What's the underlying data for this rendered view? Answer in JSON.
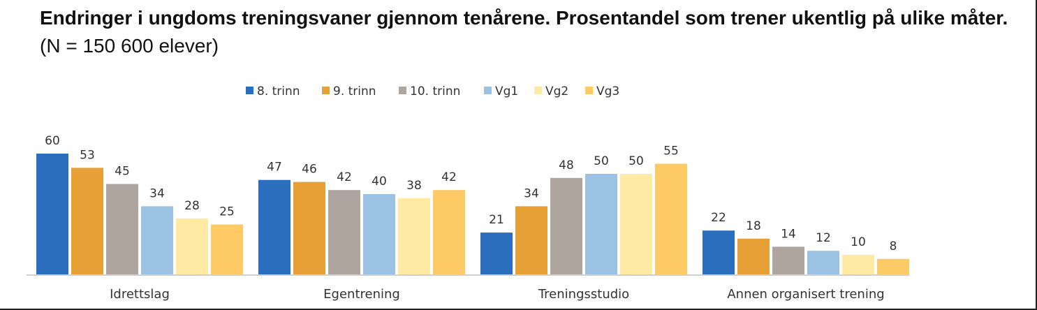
{
  "title": {
    "bold": "Endringer i ungdoms treningsvaner gjennom tenårene. Prosentandel som trener ukentlig på ulike måter.",
    "normal": "(N = 150 600 elever)"
  },
  "chart_data": {
    "type": "bar",
    "categories": [
      "Idrettslag",
      "Egentrening",
      "Treningsstudio",
      "Annen organisert trening"
    ],
    "series": [
      {
        "name": "8. trinn",
        "color": "#2b6ebd",
        "values": [
          60,
          47,
          21,
          22
        ]
      },
      {
        "name": "9. trinn",
        "color": "#e6a035",
        "values": [
          53,
          46,
          34,
          18
        ]
      },
      {
        "name": "10. trinn",
        "color": "#aea59f",
        "values": [
          45,
          42,
          48,
          14
        ]
      },
      {
        "name": "Vg1",
        "color": "#9bc2e3",
        "values": [
          34,
          40,
          50,
          12
        ]
      },
      {
        "name": "Vg2",
        "color": "#feeaa2",
        "values": [
          28,
          38,
          50,
          10
        ]
      },
      {
        "name": "Vg3",
        "color": "#fdca66",
        "values": [
          25,
          42,
          55,
          8
        ]
      }
    ],
    "legend_position": "top",
    "grid": false,
    "ylim": [
      0,
      60
    ]
  }
}
